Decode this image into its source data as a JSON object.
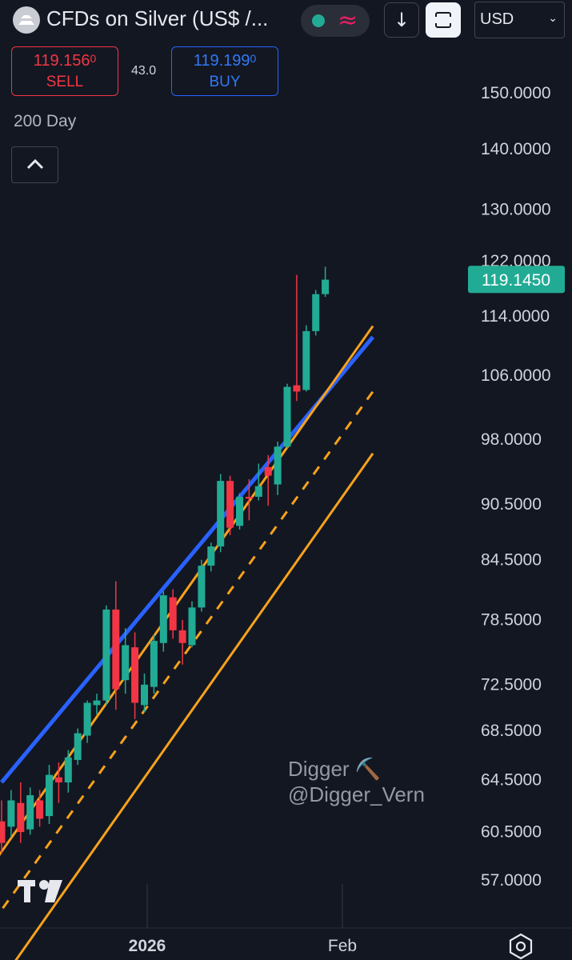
{
  "header": {
    "title": "CFDs on Silver (US$ /...",
    "currency": "USD",
    "currency_chevron": "⌄",
    "down_arrow": "↓",
    "wave_symbol": "≈",
    "icons": [
      "silver-logo-icon",
      "market-open-dot-icon",
      "wave-icon",
      "arrow-down-icon",
      "fullscreen-icon",
      "chevron-down-icon",
      "chevron-up-icon",
      "tradingview-logo-icon",
      "settings-hexagon-icon"
    ]
  },
  "trade": {
    "sell_price": "119.156",
    "sell_price_small": "0",
    "sell_label": "SELL",
    "buy_price": "119.199",
    "buy_price_small": "0",
    "buy_label": "BUY",
    "spread": "43.0"
  },
  "indicator": {
    "name": "200 Day"
  },
  "watermark": {
    "line1": "Digger ⛏️",
    "line2": "@Digger_Vern"
  },
  "colors": {
    "background": "#131722",
    "up": "#22ab94",
    "down": "#f23645",
    "ma_line": "#2962ff",
    "channel": "#f7a21b",
    "last_price_bg": "#22ab94"
  },
  "chart_data": {
    "type": "candlestick",
    "title": "CFDs on Silver (US$ /...",
    "y_scale": "log",
    "ylim": [
      55.5,
      155
    ],
    "y_ticks": [
      "150.0000",
      "140.0000",
      "130.0000",
      "122.0000",
      "114.0000",
      "106.0000",
      "98.0000",
      "90.5000",
      "84.5000",
      "78.5000",
      "72.5000",
      "68.5000",
      "64.5000",
      "60.5000",
      "57.0000"
    ],
    "x_ticks": [
      "2026",
      "Feb"
    ],
    "last_price": "119.1450",
    "grid": false,
    "candles": [
      {
        "o": 61.2,
        "h": 62.8,
        "l": 58.8,
        "c": 59.6
      },
      {
        "o": 60.8,
        "h": 63.6,
        "l": 60.0,
        "c": 62.8
      },
      {
        "o": 62.6,
        "h": 64.2,
        "l": 59.6,
        "c": 60.4
      },
      {
        "o": 60.6,
        "h": 63.8,
        "l": 60.2,
        "c": 63.2
      },
      {
        "o": 62.8,
        "h": 63.6,
        "l": 60.8,
        "c": 61.4
      },
      {
        "o": 61.6,
        "h": 65.6,
        "l": 61.0,
        "c": 64.8
      },
      {
        "o": 64.6,
        "h": 65.8,
        "l": 62.6,
        "c": 64.2
      },
      {
        "o": 64.2,
        "h": 66.8,
        "l": 63.4,
        "c": 66.2
      },
      {
        "o": 66.0,
        "h": 68.6,
        "l": 65.6,
        "c": 68.2
      },
      {
        "o": 68.0,
        "h": 71.0,
        "l": 67.4,
        "c": 70.8
      },
      {
        "o": 70.6,
        "h": 71.6,
        "l": 69.8,
        "c": 71.0
      },
      {
        "o": 71.0,
        "h": 79.8,
        "l": 70.6,
        "c": 79.4
      },
      {
        "o": 79.4,
        "h": 82.2,
        "l": 70.2,
        "c": 72.0
      },
      {
        "o": 72.8,
        "h": 77.6,
        "l": 71.6,
        "c": 76.0
      },
      {
        "o": 75.8,
        "h": 77.2,
        "l": 69.4,
        "c": 70.8
      },
      {
        "o": 70.6,
        "h": 73.4,
        "l": 70.0,
        "c": 72.4
      },
      {
        "o": 72.2,
        "h": 77.0,
        "l": 71.6,
        "c": 76.4
      },
      {
        "o": 76.2,
        "h": 81.2,
        "l": 75.4,
        "c": 80.8
      },
      {
        "o": 80.6,
        "h": 81.4,
        "l": 76.6,
        "c": 77.4
      },
      {
        "o": 77.4,
        "h": 78.4,
        "l": 74.2,
        "c": 76.2
      },
      {
        "o": 76.0,
        "h": 80.2,
        "l": 75.8,
        "c": 79.6
      },
      {
        "o": 79.6,
        "h": 84.4,
        "l": 79.2,
        "c": 83.8
      },
      {
        "o": 83.8,
        "h": 86.2,
        "l": 83.2,
        "c": 85.8
      },
      {
        "o": 85.8,
        "h": 93.8,
        "l": 85.2,
        "c": 93.0
      },
      {
        "o": 93.0,
        "h": 93.6,
        "l": 87.0,
        "c": 87.8
      },
      {
        "o": 88.0,
        "h": 91.6,
        "l": 87.6,
        "c": 91.2
      },
      {
        "o": 91.2,
        "h": 93.2,
        "l": 88.6,
        "c": 91.0
      },
      {
        "o": 91.2,
        "h": 95.0,
        "l": 90.8,
        "c": 92.4
      },
      {
        "o": 94.6,
        "h": 96.0,
        "l": 90.2,
        "c": 93.6
      },
      {
        "o": 92.6,
        "h": 97.6,
        "l": 91.4,
        "c": 97.0
      },
      {
        "o": 97.0,
        "h": 104.8,
        "l": 96.8,
        "c": 104.4
      },
      {
        "o": 104.6,
        "h": 119.8,
        "l": 102.6,
        "c": 103.8
      },
      {
        "o": 104.0,
        "h": 112.6,
        "l": 103.8,
        "c": 111.8
      },
      {
        "o": 111.8,
        "h": 117.6,
        "l": 111.2,
        "c": 117.0
      },
      {
        "o": 117.0,
        "h": 121.0,
        "l": 116.6,
        "c": 119.1
      }
    ],
    "series": [
      {
        "name": "200 Day",
        "type": "line",
        "x": [
          0,
          39
        ],
        "y": [
          64.2,
          111.0
        ]
      },
      {
        "type": "line",
        "style": "solid",
        "x": [
          -1,
          39
        ],
        "y": [
          58.0,
          112.5
        ]
      },
      {
        "type": "line",
        "style": "dashed",
        "x": [
          -1,
          39
        ],
        "y": [
          54.0,
          103.8
        ]
      },
      {
        "type": "line",
        "style": "solid",
        "x": [
          -1,
          39
        ],
        "y": [
          49.5,
          96.2
        ]
      }
    ]
  }
}
